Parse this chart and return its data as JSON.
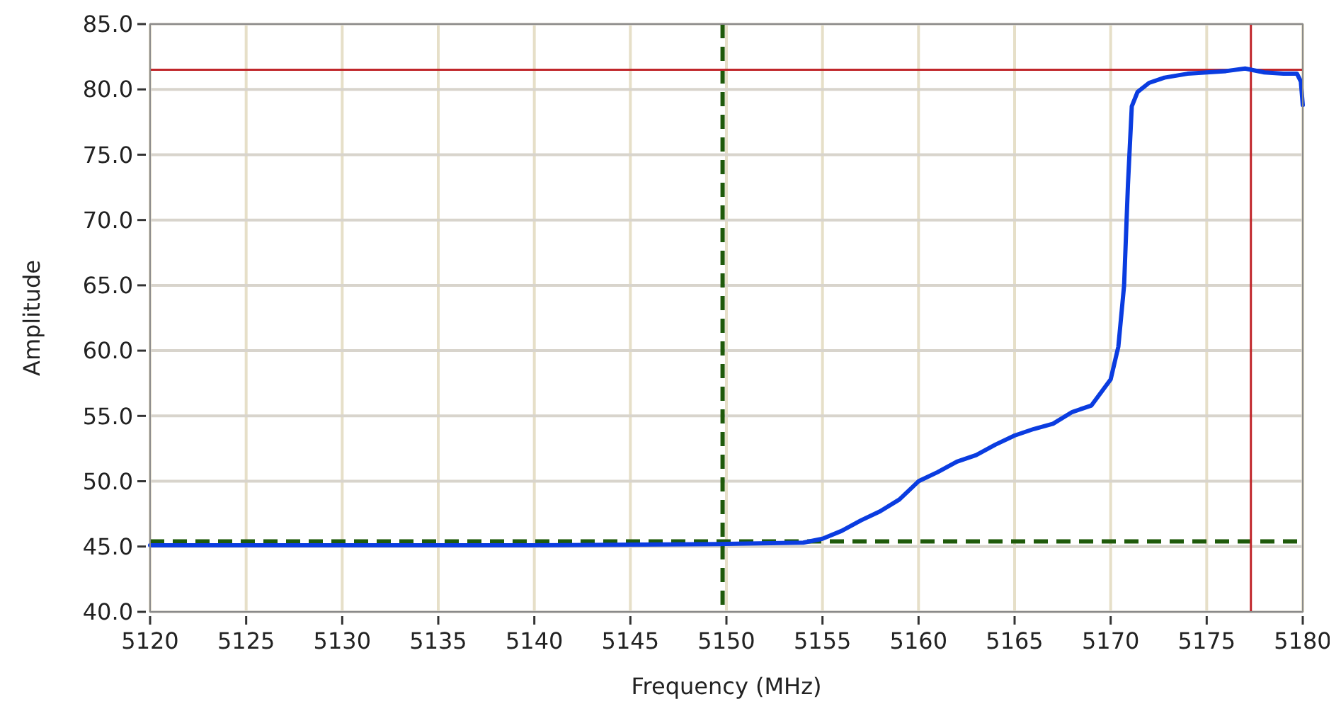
{
  "chart_data": {
    "type": "line",
    "xlabel": "Frequency (MHz)",
    "ylabel": "Amplitude",
    "x": [
      5120,
      5130,
      5140,
      5150,
      5154,
      5155,
      5156,
      5157,
      5158,
      5159,
      5160,
      5161,
      5162,
      5163,
      5164,
      5165,
      5166,
      5167,
      5168,
      5169,
      5170,
      5170.4,
      5170.7,
      5170.9,
      5171.1,
      5171.4,
      5172,
      5172.8,
      5174,
      5175,
      5176,
      5177,
      5178,
      5179,
      5179.7,
      5179.9,
      5180
    ],
    "series": [
      {
        "color": "#0a3ce0",
        "values": [
          45.1,
          45.1,
          45.1,
          45.2,
          45.3,
          45.6,
          46.2,
          47.0,
          47.7,
          48.6,
          50.0,
          50.7,
          51.5,
          52.0,
          52.8,
          53.5,
          54.0,
          54.4,
          55.3,
          55.8,
          57.8,
          60.3,
          65.0,
          72.7,
          78.7,
          79.8,
          80.5,
          80.9,
          81.2,
          81.3,
          81.4,
          81.6,
          81.3,
          81.2,
          81.2,
          80.6,
          78.8
        ]
      }
    ],
    "xlim": [
      5120,
      5180
    ],
    "ylim": [
      40,
      85
    ],
    "xticks": [
      5120,
      5125,
      5130,
      5135,
      5140,
      5145,
      5150,
      5155,
      5160,
      5165,
      5170,
      5175,
      5180
    ],
    "yticks": [
      {
        "value": 40,
        "label": "40.0"
      },
      {
        "value": 45,
        "label": "45.0"
      },
      {
        "value": 50,
        "label": "50.0"
      },
      {
        "value": 55,
        "label": "55.0"
      },
      {
        "value": 60,
        "label": "60.0"
      },
      {
        "value": 65,
        "label": "65.0"
      },
      {
        "value": 70,
        "label": "70.0"
      },
      {
        "value": 75,
        "label": "75.0"
      },
      {
        "value": 80,
        "label": "80.0"
      },
      {
        "value": 85,
        "label": "85.0"
      }
    ],
    "grid": true,
    "marker": "none",
    "line_style": "solid",
    "ref_lines": [
      {
        "axis": "x",
        "value": 5149.8,
        "color": "#1f5a0a",
        "line_style": "dashed"
      },
      {
        "axis": "y",
        "value": 45.4,
        "color": "#1f5a0a",
        "line_style": "dashed"
      },
      {
        "axis": "x",
        "value": 5177.3,
        "color": "#c0262a",
        "line_style": "solid"
      },
      {
        "axis": "y",
        "value": 81.5,
        "color": "#c0262a",
        "line_style": "solid"
      }
    ]
  }
}
